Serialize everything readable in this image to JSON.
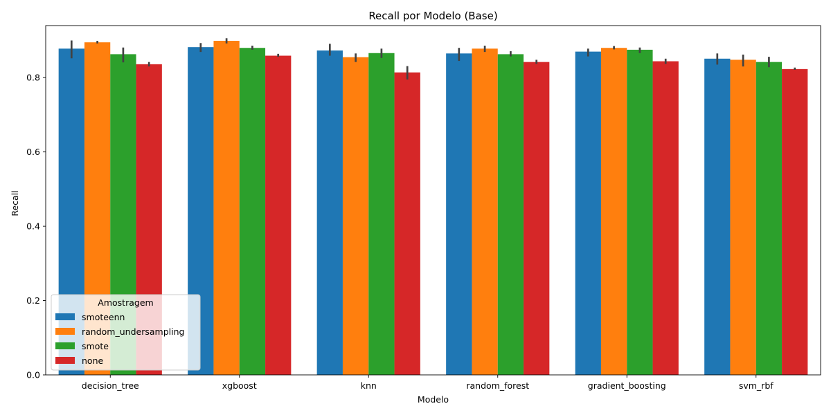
{
  "chart_data": {
    "type": "bar",
    "title": "Recall por Modelo (Base)",
    "xlabel": "Modelo",
    "ylabel": "Recall",
    "ylim": [
      0,
      0.94
    ],
    "yticks": [
      "0.0",
      "0.2",
      "0.4",
      "0.6",
      "0.8"
    ],
    "grid": false,
    "categories": [
      "decision_tree",
      "xgboost",
      "knn",
      "random_forest",
      "gradient_boosting",
      "svm_rbf"
    ],
    "legend": {
      "title": "Amostragem",
      "placement": "lower-left"
    },
    "series": [
      {
        "name": "smoteenn",
        "color": "#1f77b4",
        "values": [
          0.878,
          0.882,
          0.873,
          0.865,
          0.87,
          0.851
        ],
        "err_low": [
          0.852,
          0.869,
          0.859,
          0.845,
          0.857,
          0.835
        ],
        "err_high": [
          0.9,
          0.893,
          0.891,
          0.88,
          0.878,
          0.865
        ]
      },
      {
        "name": "random_undersampling",
        "color": "#ff7f0e",
        "values": [
          0.895,
          0.899,
          0.855,
          0.878,
          0.88,
          0.848
        ],
        "err_low": [
          0.892,
          0.892,
          0.842,
          0.869,
          0.876,
          0.83
        ],
        "err_high": [
          0.899,
          0.906,
          0.865,
          0.886,
          0.885,
          0.862
        ]
      },
      {
        "name": "smote",
        "color": "#2ca02c",
        "values": [
          0.863,
          0.88,
          0.866,
          0.863,
          0.875,
          0.842
        ],
        "err_low": [
          0.841,
          0.875,
          0.853,
          0.857,
          0.866,
          0.828
        ],
        "err_high": [
          0.881,
          0.886,
          0.878,
          0.871,
          0.881,
          0.856
        ]
      },
      {
        "name": "none",
        "color": "#d62728",
        "values": [
          0.836,
          0.859,
          0.814,
          0.842,
          0.844,
          0.823
        ],
        "err_low": [
          0.83,
          0.856,
          0.795,
          0.837,
          0.837,
          0.821
        ],
        "err_high": [
          0.842,
          0.864,
          0.831,
          0.848,
          0.851,
          0.827
        ]
      }
    ]
  }
}
